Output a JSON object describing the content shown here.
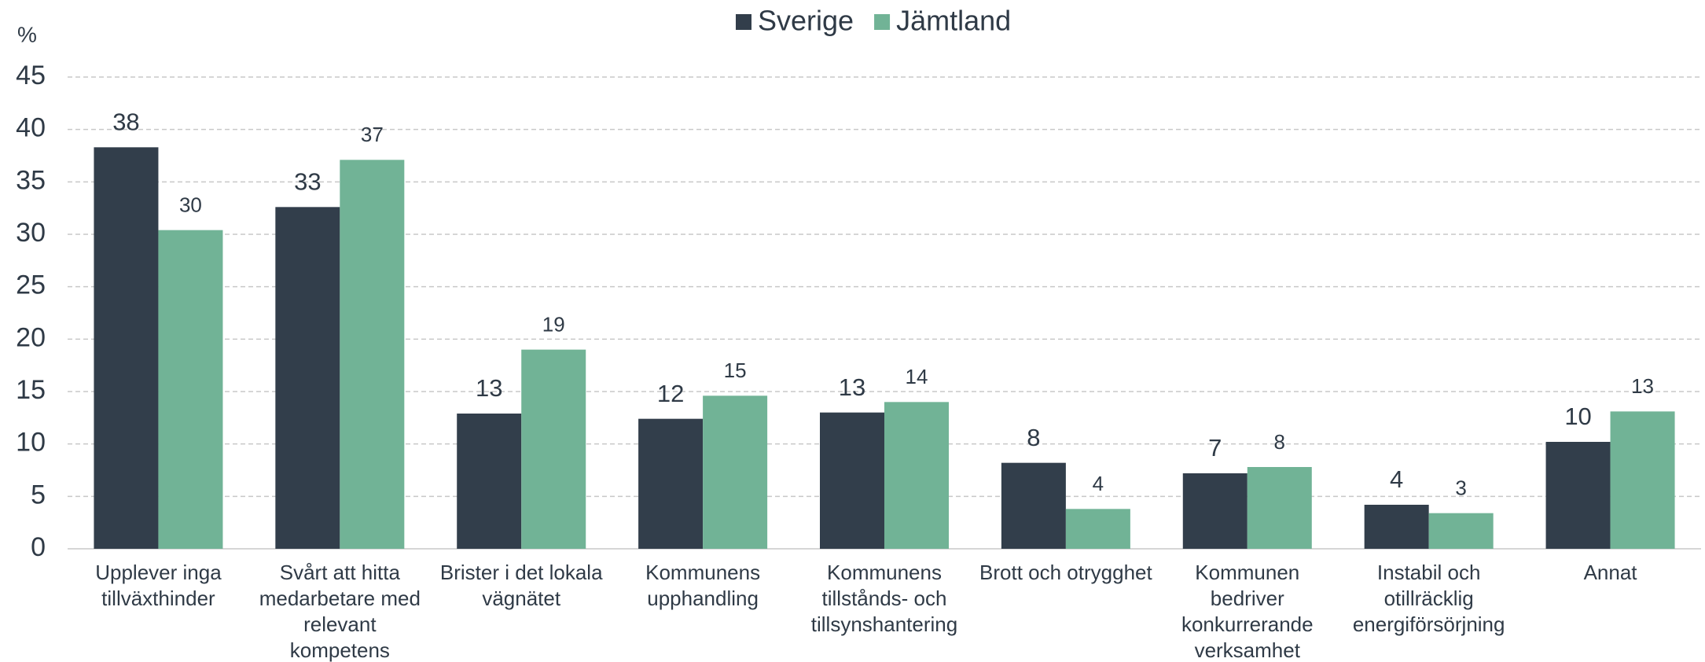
{
  "chart_data": {
    "type": "bar",
    "y_label": "%",
    "categories": [
      "Upplever inga tillväxthinder",
      "Svårt att hitta medarbetare med relevant kompetens",
      "Brister i det lokala vägnätet",
      "Kommunens upphandling",
      "Kommunens tillstånds- och tillsynshantering",
      "Brott och otrygghet",
      "Kommunen bedriver konkurrerande verksamhet",
      "Instabil och otillräcklig energiförsörjning",
      "Annat"
    ],
    "series": [
      {
        "name": "Sverige",
        "color": "#323e4b",
        "values": [
          38.3,
          32.6,
          12.9,
          12.4,
          13.0,
          8.2,
          7.2,
          4.2,
          10.2
        ],
        "value_labels": [
          "38",
          "33",
          "13",
          "12",
          "13",
          "8",
          "7",
          "4",
          "10"
        ]
      },
      {
        "name": "Jämtland",
        "color": "#71b396",
        "values": [
          30.4,
          37.1,
          19.0,
          14.6,
          14.0,
          3.8,
          7.8,
          3.4,
          13.1
        ],
        "value_labels": [
          "30",
          "37",
          "19",
          "15",
          "14",
          "4",
          "8",
          "3",
          "13"
        ]
      }
    ],
    "ylim": [
      0,
      45
    ],
    "yticks": [
      0,
      5,
      10,
      15,
      20,
      25,
      30,
      35,
      40,
      45
    ],
    "grid": true,
    "legend": "top"
  }
}
